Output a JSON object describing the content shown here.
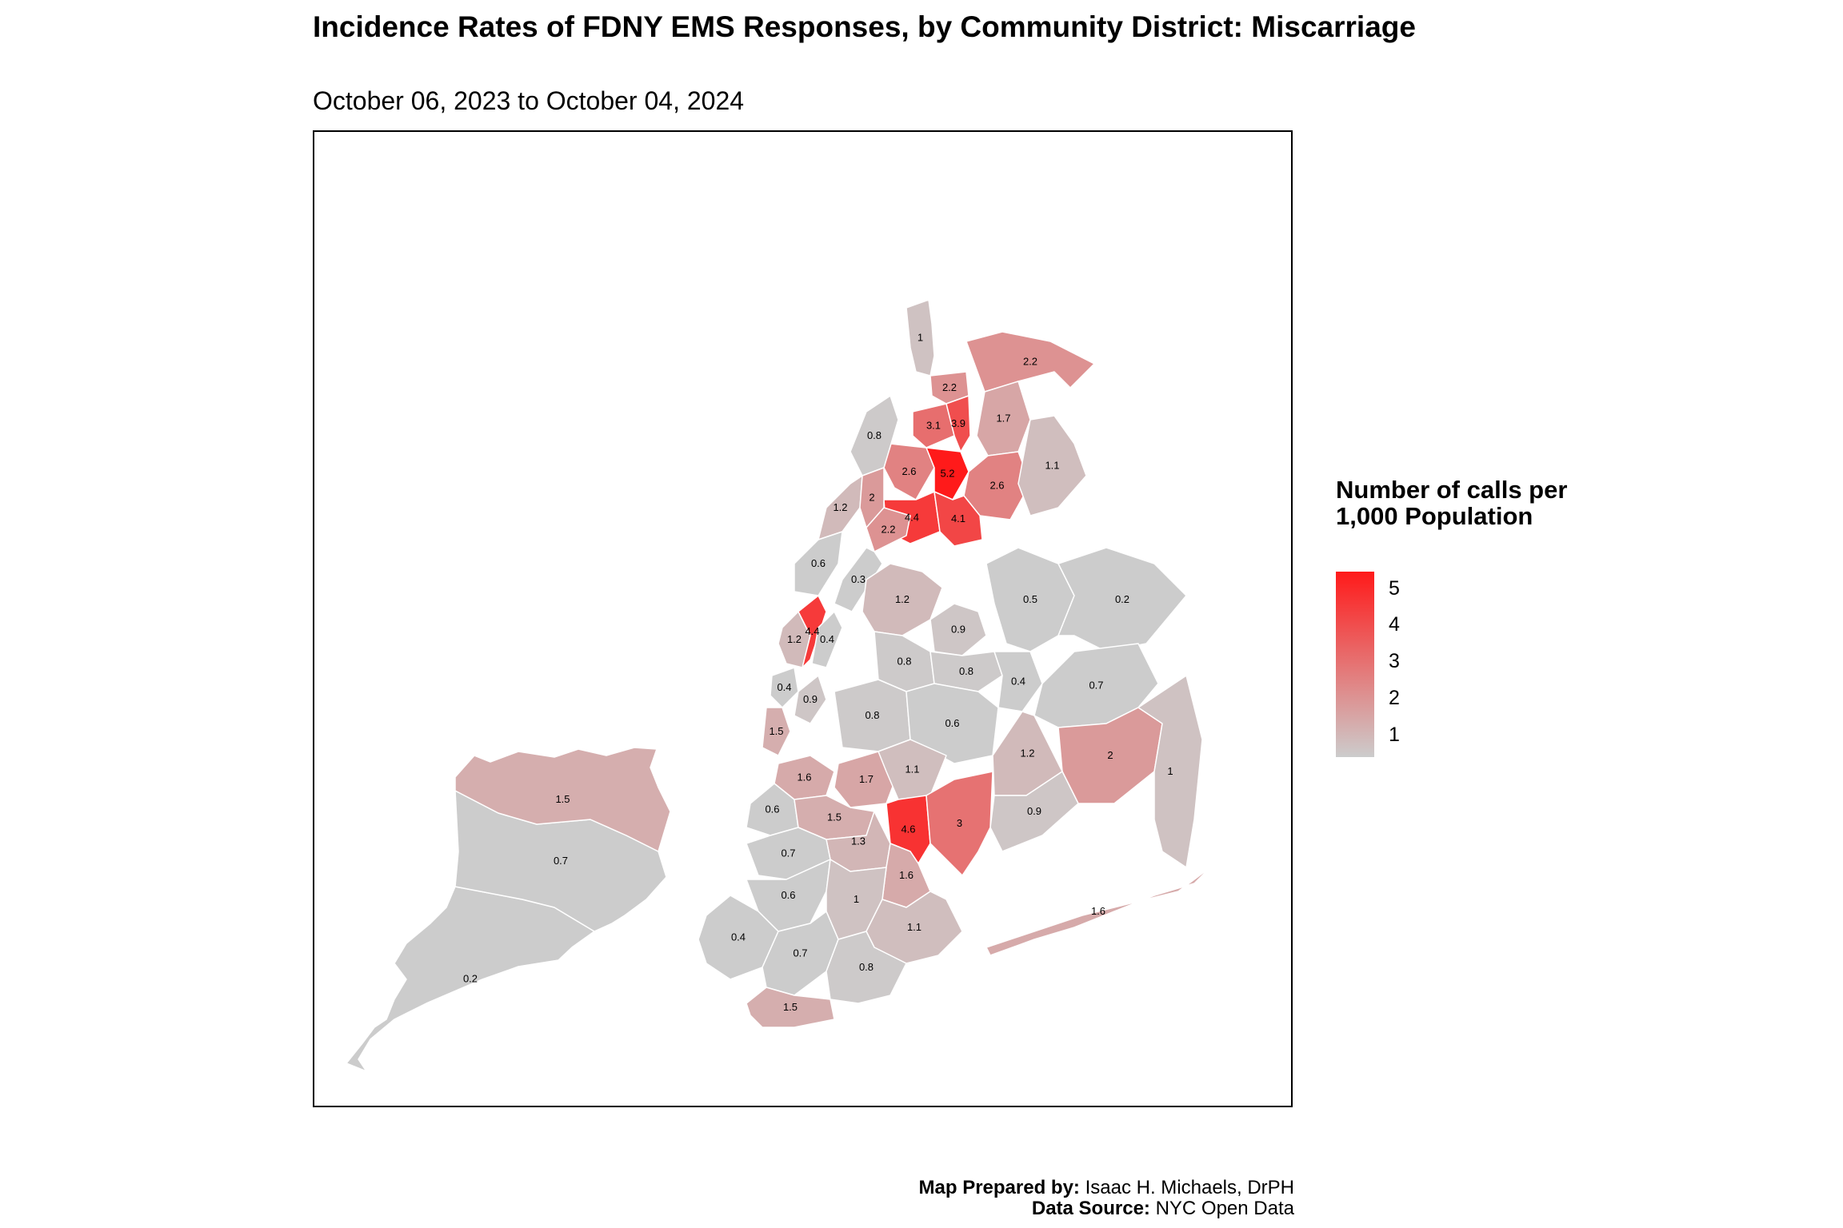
{
  "title": "Incidence Rates of FDNY EMS Responses, by Community District: Miscarriage",
  "subtitle": "October 06, 2023 to October 04, 2024",
  "legend": {
    "title": "Number of calls per 1,000 Population",
    "ticks": [
      "5",
      "4",
      "3",
      "2",
      "1"
    ],
    "low_color": "#cccccc",
    "high_color": "#ff1a1a"
  },
  "credits": {
    "prepared_label": "Map Prepared by:",
    "prepared_value": "Isaac H. Michaels, DrPH",
    "source_label": "Data Source:",
    "source_value": "NYC Open Data"
  },
  "districts": [
    {
      "id": "bx-riverdale",
      "value": "1"
    },
    {
      "id": "bx-kingsbridge",
      "value": "2.2"
    },
    {
      "id": "bx-northeast",
      "value": "2.2"
    },
    {
      "id": "bx-fordham",
      "value": "3.1"
    },
    {
      "id": "bx-bedford-park",
      "value": "3.9"
    },
    {
      "id": "bx-williamsbridge",
      "value": "1.7"
    },
    {
      "id": "bx-highbridge",
      "value": "2.6"
    },
    {
      "id": "bx-tremont",
      "value": "5.2"
    },
    {
      "id": "bx-parkchester",
      "value": "2.6"
    },
    {
      "id": "bx-throgs-neck",
      "value": "1.1"
    },
    {
      "id": "bx-morrisania",
      "value": "4.4"
    },
    {
      "id": "bx-hunts-point",
      "value": "4.1"
    },
    {
      "id": "mn-washington-heights",
      "value": "0.8"
    },
    {
      "id": "mn-west-harlem",
      "value": "1.2"
    },
    {
      "id": "mn-central-harlem",
      "value": "2"
    },
    {
      "id": "mn-east-harlem",
      "value": "2.2"
    },
    {
      "id": "mn-upper-west",
      "value": "0.6"
    },
    {
      "id": "mn-upper-east",
      "value": "0.3"
    },
    {
      "id": "mn-clinton",
      "value": "1.2"
    },
    {
      "id": "mn-midtown",
      "value": "4.4"
    },
    {
      "id": "mn-murray-hill",
      "value": "0.4"
    },
    {
      "id": "mn-chelsea",
      "value": "0.4"
    },
    {
      "id": "mn-lower-east",
      "value": "0.9"
    },
    {
      "id": "mn-financial",
      "value": "1.5"
    },
    {
      "id": "qn-astoria",
      "value": "1.2"
    },
    {
      "id": "qn-jackson-heights",
      "value": "0.9"
    },
    {
      "id": "qn-flushing",
      "value": "0.5"
    },
    {
      "id": "qn-bayside",
      "value": "0.2"
    },
    {
      "id": "qn-sunnyside",
      "value": "0.8"
    },
    {
      "id": "qn-elmhurst",
      "value": "0.8"
    },
    {
      "id": "qn-fresh-meadows",
      "value": "0.4"
    },
    {
      "id": "qn-queens-village",
      "value": "0.7"
    },
    {
      "id": "qn-ridgewood",
      "value": "0.8"
    },
    {
      "id": "qn-rego-park",
      "value": "0.6"
    },
    {
      "id": "qn-jamaica",
      "value": "2"
    },
    {
      "id": "qn-woodhaven",
      "value": "1.2"
    },
    {
      "id": "qn-ozone-park",
      "value": "0.9"
    },
    {
      "id": "qn-rosedale",
      "value": "1"
    },
    {
      "id": "qn-rockaway",
      "value": "1.6"
    },
    {
      "id": "bk-williamsburg",
      "value": "1.6"
    },
    {
      "id": "bk-bushwick",
      "value": "1.7"
    },
    {
      "id": "bk-cypress",
      "value": "1.1"
    },
    {
      "id": "bk-brooklyn-heights",
      "value": "0.6"
    },
    {
      "id": "bk-bed-stuy",
      "value": "1.5"
    },
    {
      "id": "bk-brownsville",
      "value": "4.6"
    },
    {
      "id": "bk-east-ny",
      "value": "3"
    },
    {
      "id": "bk-crown-heights",
      "value": "1.3"
    },
    {
      "id": "bk-park-slope",
      "value": "0.7"
    },
    {
      "id": "bk-east-flatbush",
      "value": "1.6"
    },
    {
      "id": "bk-sunset-park",
      "value": "0.6"
    },
    {
      "id": "bk-flatbush",
      "value": "1"
    },
    {
      "id": "bk-bay-ridge",
      "value": "0.4"
    },
    {
      "id": "bk-canarsie",
      "value": "1.1"
    },
    {
      "id": "bk-bensonhurst",
      "value": "0.7"
    },
    {
      "id": "bk-sheepshead",
      "value": "0.8"
    },
    {
      "id": "bk-coney-island",
      "value": "1.5"
    },
    {
      "id": "si-north-shore",
      "value": "1.5"
    },
    {
      "id": "si-mid-island",
      "value": "0.7"
    },
    {
      "id": "si-south-shore",
      "value": "0.2"
    }
  ]
}
